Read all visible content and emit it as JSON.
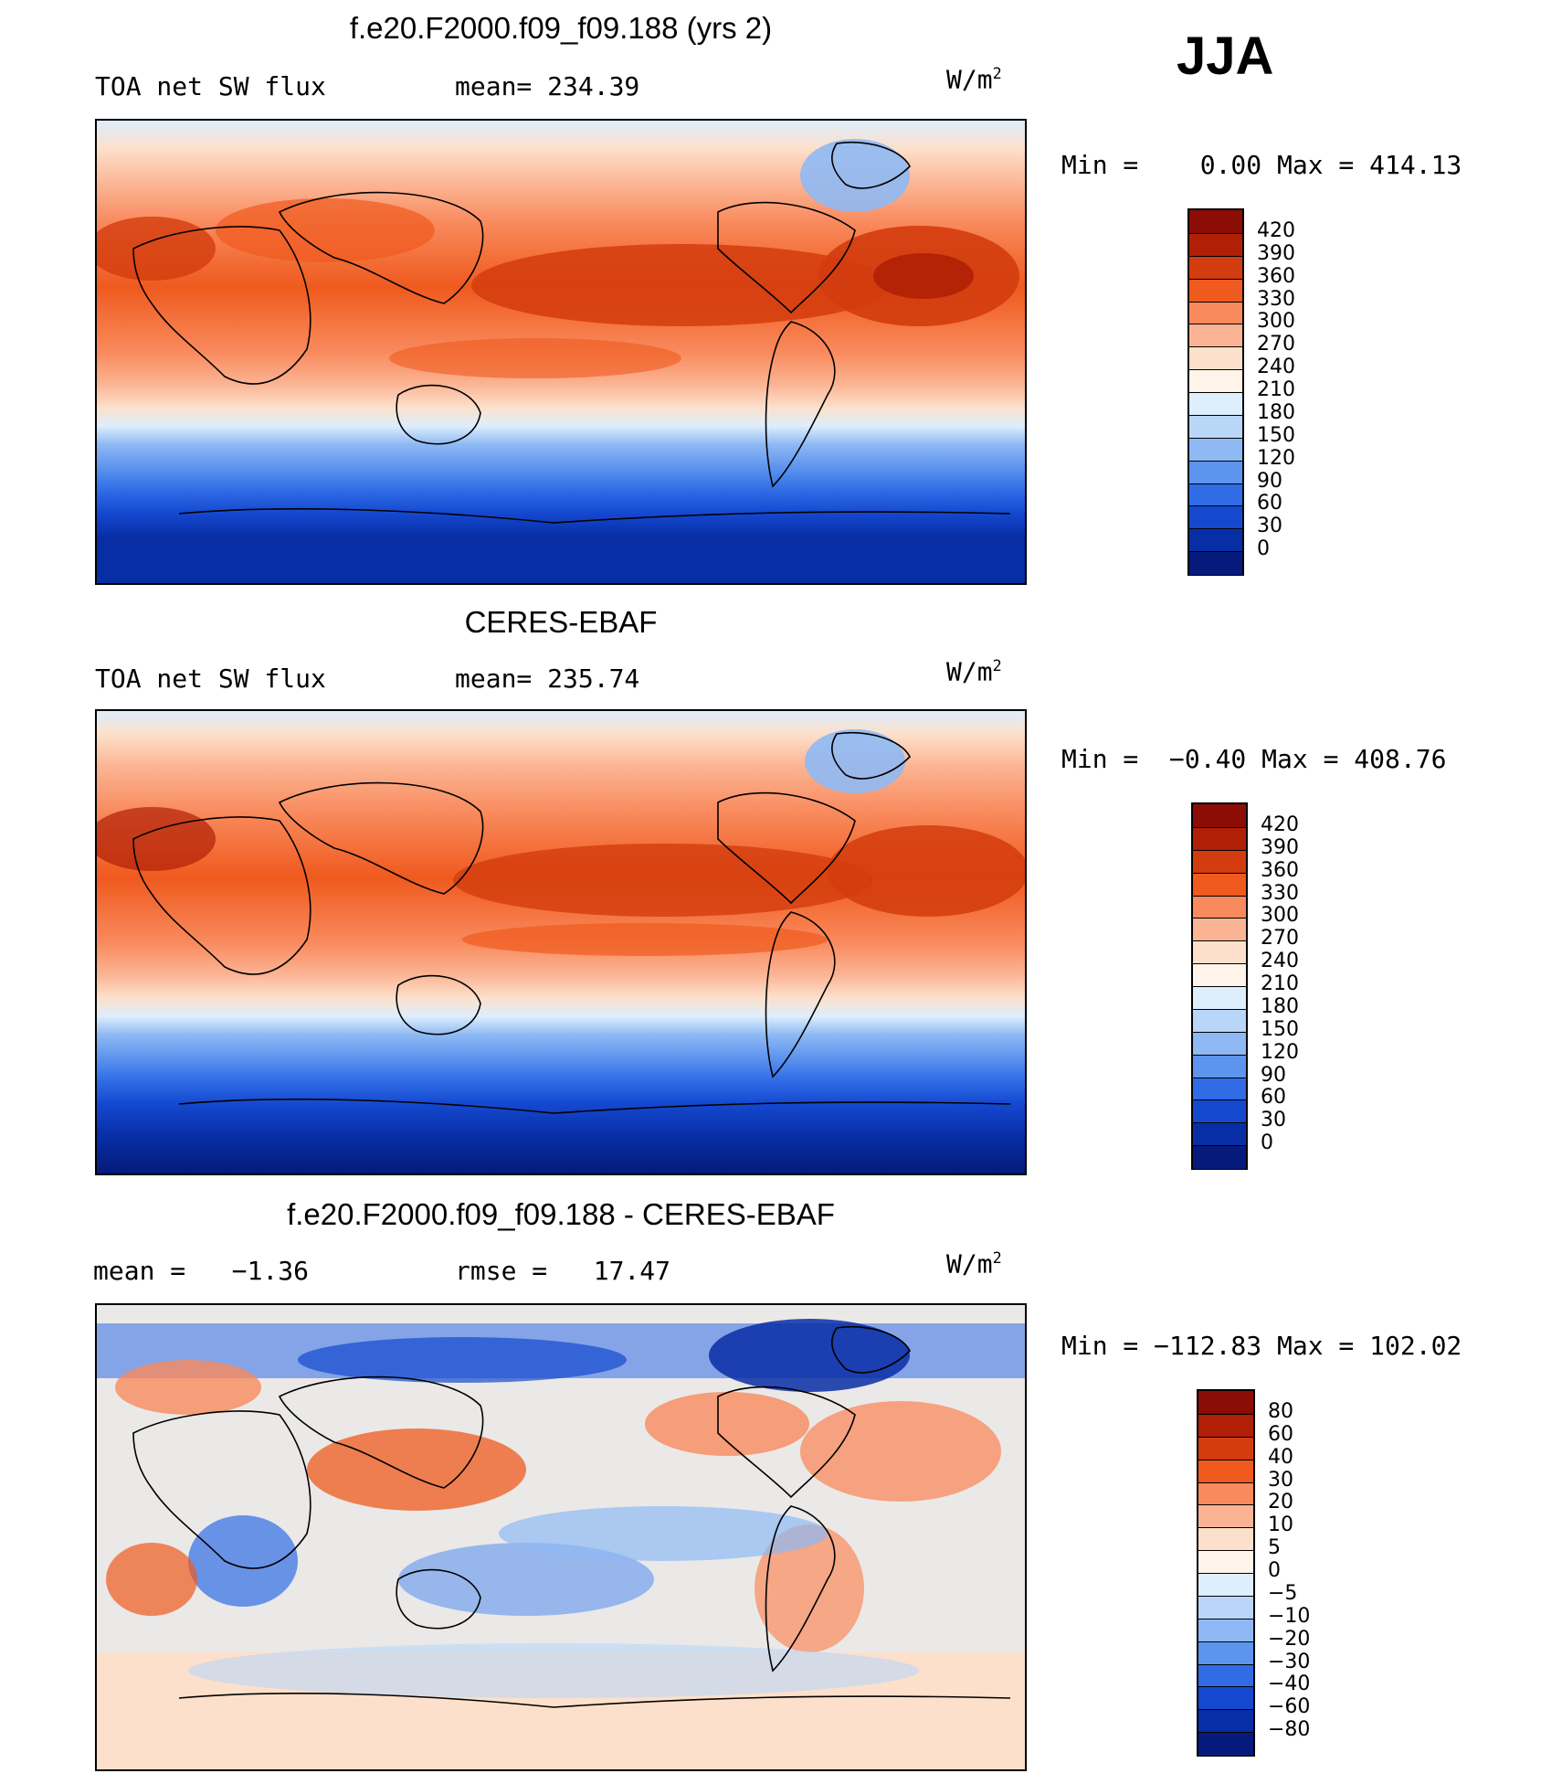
{
  "season": "JJA",
  "units_text": "W/m",
  "units_exp": "2",
  "panels": [
    {
      "title": "f.e20.F2000.f09_f09.188 (yrs 2)",
      "left_label": "TOA net SW flux",
      "center_label": "mean= 234.39",
      "minmax": "Min =    0.00 Max = 414.13",
      "colorbar": {
        "labels": [
          "420",
          "390",
          "360",
          "330",
          "300",
          "270",
          "240",
          "210",
          "180",
          "150",
          "120",
          "90",
          "60",
          "30",
          "0"
        ],
        "colors": [
          "#8b0d05",
          "#b02006",
          "#d33c0e",
          "#ef5a1e",
          "#f98a5d",
          "#fbb493",
          "#fde0cb",
          "#fff4ea",
          "#ddeefc",
          "#b9d6f8",
          "#8fb9f4",
          "#5d94ee",
          "#2f6ce6",
          "#1448cf",
          "#082ea6",
          "#051a7a"
        ]
      },
      "map_style": "absolute"
    },
    {
      "title": "CERES-EBAF",
      "left_label": "TOA net SW flux",
      "center_label": "mean= 235.74",
      "minmax": "Min =  −0.40 Max = 408.76",
      "colorbar": {
        "labels": [
          "420",
          "390",
          "360",
          "330",
          "300",
          "270",
          "240",
          "210",
          "180",
          "150",
          "120",
          "90",
          "60",
          "30",
          "0"
        ],
        "colors": [
          "#8b0d05",
          "#b02006",
          "#d33c0e",
          "#ef5a1e",
          "#f98a5d",
          "#fbb493",
          "#fde0cb",
          "#fff4ea",
          "#ddeefc",
          "#b9d6f8",
          "#8fb9f4",
          "#5d94ee",
          "#2f6ce6",
          "#1448cf",
          "#082ea6",
          "#051a7a"
        ]
      },
      "map_style": "absolute"
    },
    {
      "title": "f.e20.F2000.f09_f09.188 - CERES-EBAF",
      "left_label": "mean =   −1.36",
      "center_label": "rmse =   17.47",
      "minmax": "Min = −112.83 Max = 102.02",
      "colorbar": {
        "labels": [
          "80",
          "60",
          "40",
          "30",
          "20",
          "10",
          "5",
          "0",
          "−5",
          "−10",
          "−20",
          "−30",
          "−40",
          "−60",
          "−80"
        ],
        "colors": [
          "#8b0d05",
          "#b02006",
          "#d33c0e",
          "#ef5a1e",
          "#f98a5d",
          "#fbb493",
          "#fde0cb",
          "#fff4ea",
          "#ddeefc",
          "#b9d6f8",
          "#8fb9f4",
          "#5d94ee",
          "#2f6ce6",
          "#1448cf",
          "#082ea6",
          "#051a7a"
        ]
      },
      "map_style": "difference"
    }
  ]
}
